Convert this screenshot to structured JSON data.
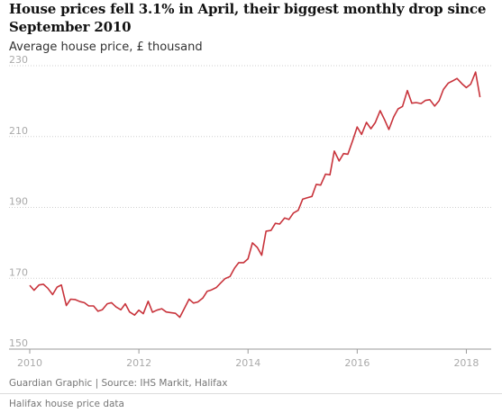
{
  "header": {
    "title": "House prices fell 3.1% in April, their biggest monthly drop since September 2010",
    "subtitle": "Average house price, £ thousand"
  },
  "footer": {
    "source": "Guardian Graphic | Source: IHS Markit, Halifax",
    "caption": "Halifax house price data"
  },
  "colors": {
    "line": "#c8333b",
    "grid": "#cfcfcf",
    "axis": "#999999",
    "tick_text": "#aaaaaa"
  },
  "chart_data": {
    "type": "line",
    "title": "House prices fell 3.1% in April, their biggest monthly drop since September 2010",
    "ylabel": "Average house price, £ thousand",
    "xlabel": "",
    "ylim": [
      150,
      230
    ],
    "xlim": [
      2010.0,
      2018.29
    ],
    "yticks": [
      150,
      170,
      190,
      210,
      230
    ],
    "xticks": [
      2010,
      2012,
      2014,
      2016,
      2018
    ],
    "grid": "horizontal dotted",
    "series": [
      {
        "x": [
          2010.0,
          2010.08,
          2010.17,
          2010.25,
          2010.33,
          2010.42,
          2010.5,
          2010.58,
          2010.67,
          2010.75,
          2010.83,
          2010.92,
          2011.0,
          2011.08,
          2011.17,
          2011.25,
          2011.33,
          2011.42,
          2011.5,
          2011.58,
          2011.67,
          2011.75,
          2011.83,
          2011.92,
          2012.0,
          2012.08,
          2012.17,
          2012.25,
          2012.33,
          2012.42,
          2012.5,
          2012.58,
          2012.67,
          2012.75,
          2012.83,
          2012.92,
          2013.0,
          2013.08,
          2013.17,
          2013.25,
          2013.33,
          2013.42,
          2013.5,
          2013.58,
          2013.67,
          2013.75,
          2013.83,
          2013.92,
          2014.0,
          2014.08,
          2014.17,
          2014.25,
          2014.33,
          2014.42,
          2014.5,
          2014.58,
          2014.67,
          2014.75,
          2014.83,
          2014.92,
          2015.0,
          2015.08,
          2015.17,
          2015.25,
          2015.33,
          2015.42,
          2015.5,
          2015.58,
          2015.67,
          2015.75,
          2015.83,
          2015.92,
          2016.0,
          2016.08,
          2016.17,
          2016.25,
          2016.33,
          2016.42,
          2016.5,
          2016.58,
          2016.67,
          2016.75,
          2016.83,
          2016.92,
          2017.0,
          2017.08,
          2017.17,
          2017.25,
          2017.33,
          2017.42,
          2017.5,
          2017.58,
          2017.67,
          2017.75,
          2017.83,
          2017.92,
          2018.0,
          2018.08,
          2018.17,
          2018.25
        ],
        "y": [
          168.0,
          166.6,
          168.1,
          168.3,
          167.2,
          165.4,
          167.5,
          168.1,
          162.3,
          164.1,
          164.0,
          163.4,
          163.1,
          162.2,
          162.2,
          160.7,
          161.1,
          162.8,
          163.1,
          161.9,
          161.1,
          162.8,
          160.5,
          159.6,
          161.0,
          160.0,
          163.5,
          160.4,
          161.0,
          161.4,
          160.5,
          160.3,
          160.1,
          159.0,
          161.4,
          164.1,
          163.0,
          163.3,
          164.4,
          166.3,
          166.7,
          167.4,
          168.7,
          169.9,
          170.5,
          172.8,
          174.4,
          174.4,
          175.5,
          180.0,
          178.7,
          176.5,
          183.3,
          183.5,
          185.5,
          185.3,
          187.0,
          186.6,
          188.4,
          189.2,
          192.3,
          192.7,
          193.1,
          196.5,
          196.3,
          199.4,
          199.2,
          205.9,
          203.1,
          205.2,
          205.0,
          209.0,
          212.7,
          210.6,
          214.0,
          212.2,
          213.9,
          217.3,
          214.8,
          212.0,
          215.6,
          217.8,
          218.5,
          223.0,
          219.4,
          219.6,
          219.3,
          220.2,
          220.4,
          218.6,
          220.1,
          223.3,
          225.1,
          225.7,
          226.4,
          224.9,
          223.8,
          224.8,
          228.2,
          221.1
        ]
      }
    ]
  }
}
